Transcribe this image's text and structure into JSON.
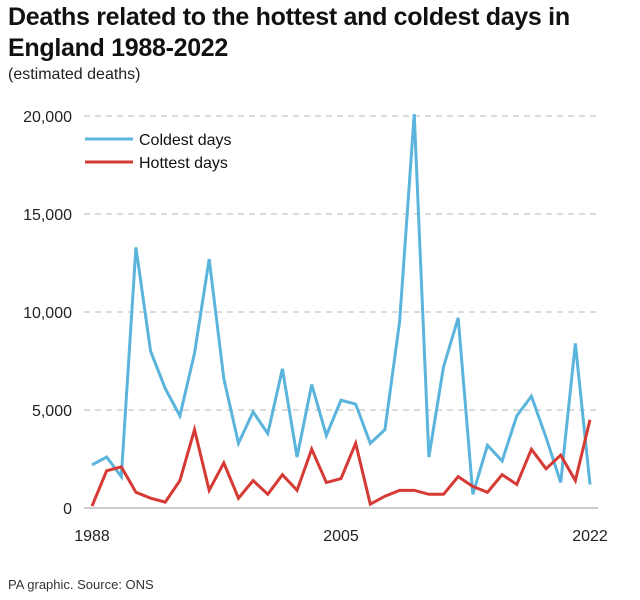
{
  "title": "Deaths related to the hottest and coldest days in England 1988-2022",
  "subtitle": "(estimated deaths)",
  "source": "PA graphic. Source: ONS",
  "chart_data": {
    "type": "line",
    "title": "Deaths related to the hottest and coldest days in England 1988-2022",
    "ylabel": "(estimated deaths)",
    "xlabel": "",
    "x": [
      1988,
      1989,
      1990,
      1991,
      1992,
      1993,
      1994,
      1995,
      1996,
      1997,
      1998,
      1999,
      2000,
      2001,
      2002,
      2003,
      2004,
      2005,
      2006,
      2007,
      2008,
      2009,
      2010,
      2011,
      2012,
      2013,
      2014,
      2015,
      2016,
      2017,
      2018,
      2019,
      2020,
      2021,
      2022
    ],
    "xlim": [
      1988,
      2022
    ],
    "ylim": [
      0,
      20000
    ],
    "x_ticks": [
      {
        "value": 1988,
        "label": "1988"
      },
      {
        "value": 2005,
        "label": "2005"
      },
      {
        "value": 2022,
        "label": "2022"
      }
    ],
    "y_ticks": [
      {
        "value": 0,
        "label": "0"
      },
      {
        "value": 5000,
        "label": "5,000"
      },
      {
        "value": 10000,
        "label": "10,000"
      },
      {
        "value": 15000,
        "label": "15,000"
      },
      {
        "value": 20000,
        "label": "20,000"
      }
    ],
    "grid": true,
    "legend_position": "top-left",
    "series": [
      {
        "name": "Coldest days",
        "color": "#5ab4dc",
        "values": [
          2200,
          2600,
          1600,
          13300,
          8000,
          6100,
          4700,
          7900,
          12700,
          6600,
          3300,
          4900,
          3800,
          7100,
          2600,
          6300,
          3700,
          5500,
          5300,
          3300,
          4000,
          9500,
          20100,
          2600,
          7200,
          9700,
          700,
          3200,
          2400,
          4700,
          5700,
          3600,
          1300,
          8400,
          1200
        ]
      },
      {
        "name": "Hottest days",
        "color": "#d63a34",
        "values": [
          100,
          1900,
          2100,
          800,
          500,
          300,
          1400,
          4000,
          900,
          2300,
          500,
          1400,
          700,
          1700,
          900,
          3000,
          1300,
          1500,
          3300,
          200,
          600,
          900,
          900,
          700,
          700,
          1600,
          1100,
          800,
          1700,
          1200,
          3000,
          2000,
          2700,
          1400,
          4500
        ]
      }
    ]
  }
}
